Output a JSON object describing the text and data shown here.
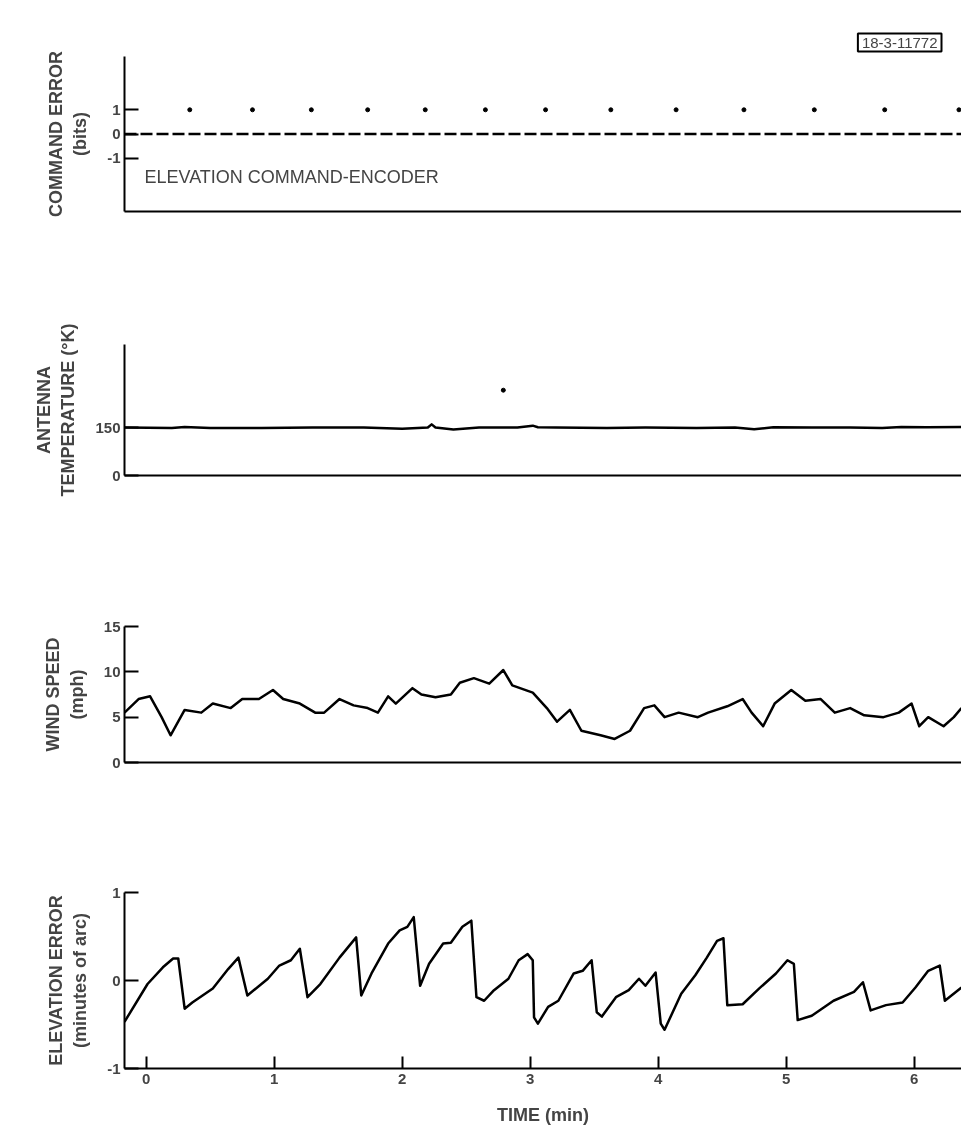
{
  "chart_data": [
    {
      "type": "line",
      "ylabel": "COMMAND ERROR\n(bits)",
      "xlim": [
        -0.17,
        6.37
      ],
      "ylim": [
        -3.2,
        3.2
      ],
      "yticks": [
        1,
        0,
        -1
      ],
      "tick_labels": "y",
      "annotations": [
        "ELEVATION COMMAND-ENCODER",
        "18-3-11772"
      ],
      "series": [
        {
          "color": "#000000",
          "line_style": "dashed",
          "x": [
            -0.17,
            6.37
          ],
          "values": [
            0,
            0
          ]
        },
        {
          "type": "scatter",
          "color": "#000000",
          "marker": "circle",
          "x": [
            0.34,
            0.83,
            1.29,
            1.73,
            2.18,
            2.65,
            3.12,
            3.63,
            4.14,
            4.67,
            5.22,
            5.77,
            6.35
          ],
          "values": [
            1,
            1,
            1,
            1,
            1,
            1,
            1,
            1,
            1,
            1,
            1,
            1,
            1
          ]
        }
      ]
    },
    {
      "type": "line",
      "ylabel": "ANTENNA\nTEMPERATURE (°K)",
      "xlim": [
        -0.17,
        6.37
      ],
      "ylim": [
        0,
        410
      ],
      "yticks": [
        0,
        150
      ],
      "tick_labels": "y",
      "series": [
        {
          "color": "#000000",
          "x": [
            -0.17,
            0.2,
            0.3,
            0.5,
            0.9,
            1.3,
            1.7,
            2.0,
            2.2,
            2.23,
            2.26,
            2.4,
            2.6,
            2.9,
            3.02,
            3.06,
            3.2,
            3.6,
            3.9,
            4.3,
            4.6,
            4.75,
            4.9,
            5.2,
            5.5,
            5.75,
            5.9,
            6.1,
            6.37
          ],
          "values": [
            150,
            149,
            152,
            149,
            149,
            150,
            150,
            146,
            150,
            160,
            150,
            144,
            150,
            150,
            156,
            151,
            150,
            149,
            150,
            149,
            150,
            145,
            151,
            150,
            150,
            149,
            152,
            151,
            152
          ]
        },
        {
          "type": "scatter",
          "color": "#000000",
          "marker": "circle",
          "x": [
            2.79
          ],
          "values": [
            267
          ]
        }
      ]
    },
    {
      "type": "line",
      "ylabel": "WIND SPEED\n(mph)",
      "xlim": [
        -0.17,
        6.37
      ],
      "ylim": [
        0,
        15
      ],
      "yticks": [
        0,
        5,
        10,
        15
      ],
      "tick_labels": "y",
      "series": [
        {
          "color": "#000000",
          "x": [
            -0.17,
            -0.06,
            0.03,
            0.12,
            0.19,
            0.3,
            0.43,
            0.52,
            0.66,
            0.75,
            0.88,
            0.99,
            1.07,
            1.2,
            1.32,
            1.39,
            1.51,
            1.62,
            1.73,
            1.81,
            1.89,
            1.95,
            2.08,
            2.15,
            2.26,
            2.38,
            2.45,
            2.56,
            2.68,
            2.79,
            2.86,
            3.02,
            3.13,
            3.21,
            3.31,
            3.4,
            3.55,
            3.66,
            3.78,
            3.89,
            3.97,
            4.05,
            4.16,
            4.31,
            4.39,
            4.54,
            4.66,
            4.73,
            4.82,
            4.91,
            5.04,
            5.15,
            5.27,
            5.38,
            5.5,
            5.61,
            5.76,
            5.88,
            5.98,
            6.04,
            6.11,
            6.23,
            6.31,
            6.37
          ],
          "values": [
            5.5,
            7,
            7.3,
            5,
            3,
            5.8,
            5.5,
            6.5,
            6,
            7,
            7,
            8,
            7,
            6.5,
            5.5,
            5.5,
            7,
            6.3,
            6,
            5.5,
            7.3,
            6.5,
            8.2,
            7.5,
            7.2,
            7.5,
            8.8,
            9.3,
            8.7,
            10.2,
            8.5,
            7.7,
            6,
            4.5,
            5.8,
            3.5,
            3,
            2.6,
            3.5,
            6,
            6.3,
            5,
            5.5,
            5,
            5.5,
            6.2,
            7,
            5.5,
            4,
            6.5,
            8,
            6.8,
            7,
            5.5,
            6,
            5.2,
            5,
            5.5,
            6.5,
            4,
            5,
            4,
            5,
            6
          ]
        }
      ]
    },
    {
      "type": "line",
      "ylabel": "ELEVATION ERROR\n(minutes of arc)",
      "xlabel": "TIME (min)",
      "xlim": [
        -0.17,
        6.37
      ],
      "ylim": [
        -1,
        1
      ],
      "yticks": [
        -1,
        0,
        1
      ],
      "xticks": [
        0,
        1,
        2,
        3,
        4,
        5,
        6
      ],
      "series": [
        {
          "color": "#000000",
          "x": [
            -0.17,
            0.01,
            0.13,
            0.21,
            0.25,
            0.3,
            0.36,
            0.52,
            0.64,
            0.72,
            0.79,
            0.95,
            1.04,
            1.13,
            1.2,
            1.26,
            1.36,
            1.51,
            1.64,
            1.68,
            1.76,
            1.89,
            1.98,
            2.04,
            2.09,
            2.14,
            2.21,
            2.32,
            2.38,
            2.47,
            2.54,
            2.58,
            2.64,
            2.71,
            2.83,
            2.91,
            2.98,
            3.02,
            3.03,
            3.06,
            3.14,
            3.22,
            3.34,
            3.41,
            3.48,
            3.52,
            3.56,
            3.67,
            3.77,
            3.85,
            3.9,
            3.98,
            4.02,
            4.05,
            4.18,
            4.29,
            4.38,
            4.46,
            4.51,
            4.54,
            4.66,
            4.79,
            4.92,
            5.01,
            5.06,
            5.09,
            5.2,
            5.37,
            5.53,
            5.6,
            5.66,
            5.78,
            5.91,
            6.01,
            6.11,
            6.2,
            6.24,
            6.37
          ],
          "values": [
            -0.47,
            -0.04,
            0.15,
            0.25,
            0.25,
            -0.32,
            -0.25,
            -0.09,
            0.13,
            0.26,
            -0.17,
            0.02,
            0.17,
            0.23,
            0.36,
            -0.19,
            -0.04,
            0.26,
            0.49,
            -0.17,
            0.08,
            0.42,
            0.57,
            0.61,
            0.72,
            -0.06,
            0.19,
            0.42,
            0.43,
            0.61,
            0.68,
            -0.19,
            -0.23,
            -0.12,
            0.02,
            0.23,
            0.3,
            0.23,
            -0.42,
            -0.49,
            -0.3,
            -0.23,
            0.08,
            0.11,
            0.23,
            -0.36,
            -0.41,
            -0.19,
            -0.11,
            0.02,
            -0.06,
            0.09,
            -0.49,
            -0.56,
            -0.15,
            0.06,
            0.26,
            0.45,
            0.48,
            -0.28,
            -0.27,
            -0.09,
            0.08,
            0.23,
            0.19,
            -0.45,
            -0.4,
            -0.23,
            -0.13,
            -0.02,
            -0.34,
            -0.28,
            -0.25,
            -0.08,
            0.11,
            0.17,
            -0.23,
            -0.08
          ]
        }
      ]
    }
  ]
}
